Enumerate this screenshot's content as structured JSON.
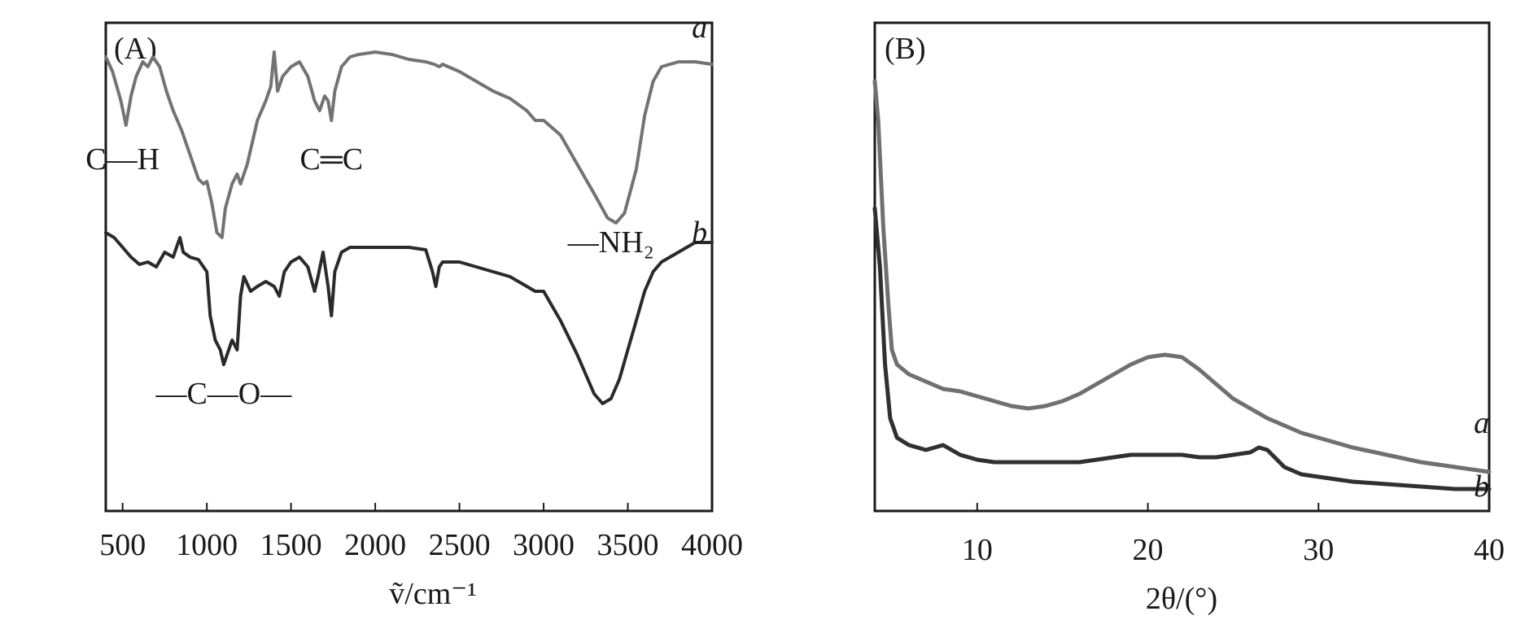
{
  "chart_data": [
    {
      "panel": "(A)",
      "type": "line",
      "title": "",
      "xlabel": "ṽ/cm⁻¹",
      "ylabel": "",
      "xlim": [
        400,
        4000
      ],
      "ylim": [
        0,
        100
      ],
      "xticks": [
        500,
        1000,
        1500,
        2000,
        2500,
        3000,
        3500,
        4000
      ],
      "grid": false,
      "annotations": [
        {
          "text": "C—H",
          "x": 500,
          "y": 70
        },
        {
          "text": "C═C",
          "x": 1740,
          "y": 70
        },
        {
          "text": "—NH₂",
          "x": 3400,
          "y": 53
        },
        {
          "text": "—C—O—",
          "x": 1100,
          "y": 22
        }
      ],
      "series": [
        {
          "name": "a",
          "color": "#737373",
          "label_at": {
            "x": 3880,
            "y": 97
          },
          "points": [
            [
              400,
              93
            ],
            [
              440,
              90
            ],
            [
              490,
              84
            ],
            [
              520,
              79
            ],
            [
              550,
              85
            ],
            [
              580,
              89
            ],
            [
              620,
              92
            ],
            [
              650,
              91
            ],
            [
              680,
              93
            ],
            [
              720,
              91
            ],
            [
              760,
              86
            ],
            [
              800,
              82
            ],
            [
              850,
              78
            ],
            [
              900,
              73
            ],
            [
              950,
              68
            ],
            [
              980,
              67
            ],
            [
              1000,
              67.5
            ],
            [
              1030,
              63
            ],
            [
              1060,
              57
            ],
            [
              1090,
              56
            ],
            [
              1110,
              62
            ],
            [
              1150,
              67
            ],
            [
              1180,
              69
            ],
            [
              1200,
              67
            ],
            [
              1240,
              71
            ],
            [
              1300,
              80
            ],
            [
              1350,
              84
            ],
            [
              1380,
              87
            ],
            [
              1400,
              94
            ],
            [
              1420,
              86
            ],
            [
              1450,
              89
            ],
            [
              1500,
              91
            ],
            [
              1550,
              92
            ],
            [
              1600,
              89
            ],
            [
              1640,
              84
            ],
            [
              1670,
              82
            ],
            [
              1700,
              85
            ],
            [
              1720,
              84
            ],
            [
              1740,
              80
            ],
            [
              1760,
              86
            ],
            [
              1800,
              91
            ],
            [
              1850,
              93
            ],
            [
              1900,
              93.5
            ],
            [
              2000,
              94
            ],
            [
              2100,
              93.5
            ],
            [
              2200,
              92.5
            ],
            [
              2300,
              92
            ],
            [
              2350,
              91.5
            ],
            [
              2380,
              91
            ],
            [
              2400,
              91.5
            ],
            [
              2500,
              90
            ],
            [
              2600,
              88
            ],
            [
              2700,
              86
            ],
            [
              2800,
              84.5
            ],
            [
              2900,
              82
            ],
            [
              2950,
              80
            ],
            [
              3000,
              80
            ],
            [
              3100,
              77
            ],
            [
              3200,
              71
            ],
            [
              3300,
              65
            ],
            [
              3380,
              60
            ],
            [
              3430,
              59
            ],
            [
              3480,
              61
            ],
            [
              3550,
              70
            ],
            [
              3600,
              81
            ],
            [
              3650,
              88
            ],
            [
              3700,
              91
            ],
            [
              3800,
              92
            ],
            [
              3900,
              92
            ],
            [
              4000,
              91.5
            ]
          ]
        },
        {
          "name": "b",
          "color": "#2a2a2a",
          "label_at": {
            "x": 3880,
            "y": 55
          },
          "points": [
            [
              400,
              57
            ],
            [
              450,
              56
            ],
            [
              500,
              54
            ],
            [
              550,
              52
            ],
            [
              600,
              50.5
            ],
            [
              650,
              51
            ],
            [
              700,
              50
            ],
            [
              750,
              53
            ],
            [
              800,
              52
            ],
            [
              840,
              56
            ],
            [
              860,
              53
            ],
            [
              900,
              52
            ],
            [
              950,
              51.5
            ],
            [
              1000,
              49
            ],
            [
              1020,
              40
            ],
            [
              1050,
              35
            ],
            [
              1080,
              33
            ],
            [
              1100,
              30
            ],
            [
              1120,
              32
            ],
            [
              1150,
              35
            ],
            [
              1180,
              33
            ],
            [
              1200,
              44
            ],
            [
              1220,
              48
            ],
            [
              1260,
              45
            ],
            [
              1300,
              46
            ],
            [
              1350,
              47
            ],
            [
              1400,
              46
            ],
            [
              1430,
              44
            ],
            [
              1460,
              49
            ],
            [
              1500,
              51
            ],
            [
              1550,
              52
            ],
            [
              1600,
              50
            ],
            [
              1640,
              45
            ],
            [
              1660,
              48
            ],
            [
              1690,
              53
            ],
            [
              1720,
              46
            ],
            [
              1740,
              40
            ],
            [
              1760,
              49
            ],
            [
              1800,
              53
            ],
            [
              1850,
              54
            ],
            [
              1900,
              54
            ],
            [
              2000,
              54
            ],
            [
              2100,
              54
            ],
            [
              2200,
              54
            ],
            [
              2300,
              53.5
            ],
            [
              2340,
              49
            ],
            [
              2360,
              46
            ],
            [
              2380,
              50
            ],
            [
              2400,
              51
            ],
            [
              2500,
              51
            ],
            [
              2600,
              50
            ],
            [
              2700,
              49
            ],
            [
              2800,
              48
            ],
            [
              2900,
              46
            ],
            [
              2950,
              45
            ],
            [
              3000,
              45
            ],
            [
              3050,
              42
            ],
            [
              3100,
              39
            ],
            [
              3200,
              32
            ],
            [
              3300,
              24
            ],
            [
              3350,
              22
            ],
            [
              3400,
              23
            ],
            [
              3450,
              27
            ],
            [
              3500,
              33
            ],
            [
              3550,
              39
            ],
            [
              3600,
              45
            ],
            [
              3650,
              49
            ],
            [
              3700,
              51
            ],
            [
              3800,
              53
            ],
            [
              3900,
              55
            ],
            [
              4000,
              55
            ]
          ]
        }
      ]
    },
    {
      "panel": "(B)",
      "type": "line",
      "title": "",
      "xlabel": "2θ/(°)",
      "ylabel": "",
      "xlim": [
        4,
        40
      ],
      "ylim": [
        0,
        100
      ],
      "xticks": [
        10,
        20,
        30,
        40
      ],
      "grid": false,
      "series": [
        {
          "name": "a",
          "color": "#707070",
          "label_at": {
            "x": 39.1,
            "y": 16
          },
          "points": [
            [
              4.0,
              88
            ],
            [
              4.2,
              80
            ],
            [
              4.5,
              58
            ],
            [
              4.8,
              42
            ],
            [
              5.0,
              33
            ],
            [
              5.3,
              30
            ],
            [
              6,
              28
            ],
            [
              7,
              26.5
            ],
            [
              8,
              25
            ],
            [
              9,
              24.5
            ],
            [
              10,
              23.5
            ],
            [
              11,
              22.5
            ],
            [
              12,
              21.5
            ],
            [
              13,
              21
            ],
            [
              14,
              21.5
            ],
            [
              15,
              22.5
            ],
            [
              16,
              24
            ],
            [
              17,
              26
            ],
            [
              18,
              28
            ],
            [
              19,
              30
            ],
            [
              20,
              31.5
            ],
            [
              21,
              32
            ],
            [
              22,
              31.5
            ],
            [
              23,
              29
            ],
            [
              24,
              26
            ],
            [
              25,
              23
            ],
            [
              26,
              21
            ],
            [
              27,
              19
            ],
            [
              28,
              17.5
            ],
            [
              29,
              16
            ],
            [
              30,
              15
            ],
            [
              32,
              13
            ],
            [
              34,
              11.5
            ],
            [
              36,
              10
            ],
            [
              38,
              9
            ],
            [
              40,
              8
            ]
          ]
        },
        {
          "name": "b",
          "color": "#303030",
          "label_at": {
            "x": 39.1,
            "y": 3
          },
          "points": [
            [
              4.0,
              62
            ],
            [
              4.3,
              50
            ],
            [
              4.6,
              30
            ],
            [
              4.9,
              19
            ],
            [
              5.3,
              15
            ],
            [
              6,
              13.5
            ],
            [
              7,
              12.5
            ],
            [
              8,
              13.5
            ],
            [
              9,
              11.5
            ],
            [
              10,
              10.5
            ],
            [
              11,
              10
            ],
            [
              12,
              10
            ],
            [
              13,
              10
            ],
            [
              14,
              10
            ],
            [
              15,
              10
            ],
            [
              16,
              10
            ],
            [
              17,
              10.5
            ],
            [
              18,
              11
            ],
            [
              19,
              11.5
            ],
            [
              20,
              11.5
            ],
            [
              21,
              11.5
            ],
            [
              22,
              11.5
            ],
            [
              23,
              11
            ],
            [
              24,
              11
            ],
            [
              25,
              11.5
            ],
            [
              26,
              12
            ],
            [
              26.5,
              13
            ],
            [
              27,
              12.5
            ],
            [
              28,
              9
            ],
            [
              29,
              7.5
            ],
            [
              30,
              7
            ],
            [
              32,
              6
            ],
            [
              34,
              5.5
            ],
            [
              36,
              5
            ],
            [
              38,
              4.5
            ],
            [
              40,
              4.5
            ]
          ]
        }
      ]
    }
  ]
}
